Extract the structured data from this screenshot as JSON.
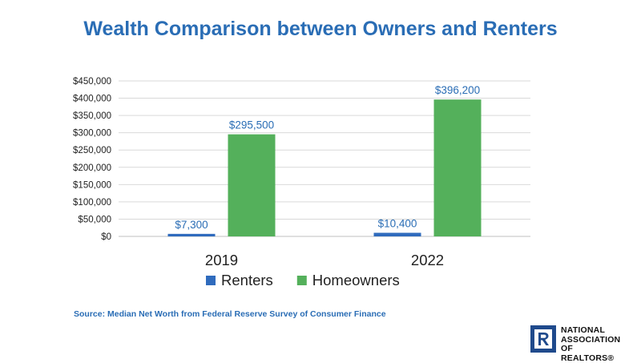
{
  "title": "Wealth Comparison between Owners and Renters",
  "source": "Source: Median Net Worth from Federal Reserve Survey of Consumer Finance",
  "logo": {
    "line1": "NATIONAL",
    "line2": "ASSOCIATION OF",
    "line3": "REALTORS®",
    "icon": "realtor-r-logo"
  },
  "chart_data": {
    "type": "bar",
    "categories": [
      "2019",
      "2022"
    ],
    "series": [
      {
        "name": "Renters",
        "values": [
          7300,
          10400
        ],
        "labels": [
          "$7,300",
          "$10,400"
        ],
        "color": "#2f6bbd"
      },
      {
        "name": "Homeowners",
        "values": [
          295500,
          396200
        ],
        "labels": [
          "$295,500",
          "$396,200"
        ],
        "color": "#54b05b"
      }
    ],
    "ylim": [
      0,
      450000
    ],
    "yticks": [
      0,
      50000,
      100000,
      150000,
      200000,
      250000,
      300000,
      350000,
      400000,
      450000
    ],
    "yticklabels": [
      "$0",
      "$50,000",
      "$100,000",
      "$150,000",
      "$200,000",
      "$250,000",
      "$300,000",
      "$350,000",
      "$400,000",
      "$450,000"
    ],
    "grid": true,
    "legend": "bottom",
    "label_color": "#2a6db5"
  }
}
